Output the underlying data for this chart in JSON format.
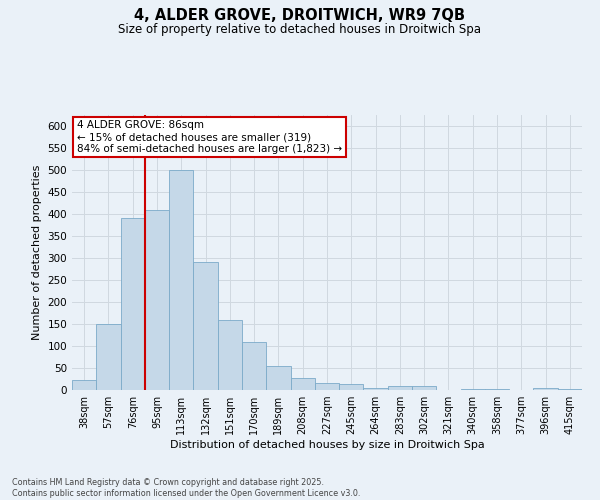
{
  "title_line1": "4, ALDER GROVE, DROITWICH, WR9 7QB",
  "title_line2": "Size of property relative to detached houses in Droitwich Spa",
  "xlabel": "Distribution of detached houses by size in Droitwich Spa",
  "ylabel": "Number of detached properties",
  "categories": [
    "38sqm",
    "57sqm",
    "76sqm",
    "95sqm",
    "113sqm",
    "132sqm",
    "151sqm",
    "170sqm",
    "189sqm",
    "208sqm",
    "227sqm",
    "245sqm",
    "264sqm",
    "283sqm",
    "302sqm",
    "321sqm",
    "340sqm",
    "358sqm",
    "377sqm",
    "396sqm",
    "415sqm"
  ],
  "values": [
    22,
    150,
    390,
    410,
    500,
    290,
    160,
    110,
    55,
    28,
    15,
    13,
    5,
    8,
    10,
    0,
    3,
    2,
    0,
    4,
    2
  ],
  "bar_color": "#c5d8e8",
  "bar_edge_color": "#7baac9",
  "grid_color": "#d0d8e0",
  "background_color": "#eaf1f8",
  "vline_x": 2.5,
  "annotation_text": "4 ALDER GROVE: 86sqm\n← 15% of detached houses are smaller (319)\n84% of semi-detached houses are larger (1,823) →",
  "annotation_box_color": "#ffffff",
  "annotation_box_edge": "#cc0000",
  "footnote": "Contains HM Land Registry data © Crown copyright and database right 2025.\nContains public sector information licensed under the Open Government Licence v3.0.",
  "ylim": [
    0,
    625
  ],
  "yticks": [
    0,
    50,
    100,
    150,
    200,
    250,
    300,
    350,
    400,
    450,
    500,
    550,
    600
  ]
}
